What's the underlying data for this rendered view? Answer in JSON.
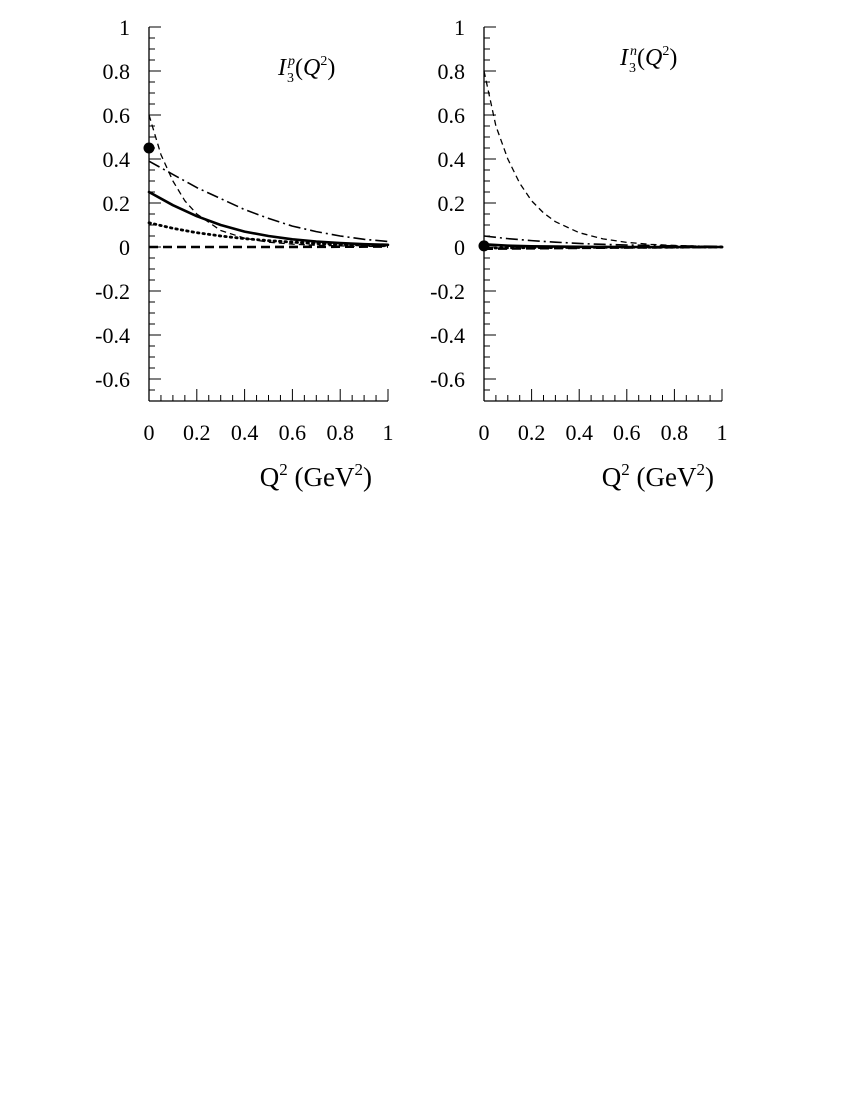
{
  "chart_data": [
    {
      "type": "line",
      "title_parts": {
        "base": "I",
        "sub": "3",
        "sup": "p",
        "open": "(",
        "var": "Q",
        "var_sup": "2",
        "close": ")"
      },
      "xlabel_parts": {
        "base": "Q",
        "sup": "2",
        "mid": " (GeV",
        "unit_sup": "2",
        "close": ")"
      },
      "xlim": [
        0,
        1
      ],
      "ylim": [
        -0.7,
        1
      ],
      "xticks": [
        0,
        0.2,
        0.4,
        0.6,
        0.8,
        1
      ],
      "xtick_labels": [
        "0",
        "0.2",
        "0.4",
        "0.6",
        "0.8",
        "1"
      ],
      "yticks": [
        1,
        0.8,
        0.6,
        0.4,
        0.2,
        0,
        -0.2,
        -0.4,
        -0.6
      ],
      "ytick_labels": [
        "1",
        "0.8",
        "0.6",
        "0.4",
        "0.2",
        "0",
        "-0.2",
        "-0.4",
        "-0.6"
      ],
      "grid": false,
      "series": [
        {
          "style": "thin-dashed",
          "x": [
            0,
            0.05,
            0.1,
            0.15,
            0.2,
            0.3,
            0.4,
            0.5,
            0.6,
            0.7,
            0.8,
            0.9,
            1.0
          ],
          "y": [
            0.6,
            0.42,
            0.3,
            0.21,
            0.15,
            0.075,
            0.04,
            0.022,
            0.013,
            0.008,
            0.005,
            0.003,
            0.002
          ]
        },
        {
          "style": "dash-dot",
          "x": [
            0,
            0.1,
            0.2,
            0.3,
            0.4,
            0.5,
            0.6,
            0.7,
            0.8,
            0.9,
            1.0
          ],
          "y": [
            0.39,
            0.33,
            0.27,
            0.22,
            0.17,
            0.13,
            0.095,
            0.07,
            0.05,
            0.035,
            0.025
          ]
        },
        {
          "style": "solid-thick",
          "x": [
            0,
            0.1,
            0.2,
            0.3,
            0.4,
            0.5,
            0.6,
            0.7,
            0.8,
            0.9,
            1.0
          ],
          "y": [
            0.25,
            0.19,
            0.14,
            0.1,
            0.07,
            0.05,
            0.035,
            0.025,
            0.018,
            0.013,
            0.01
          ]
        },
        {
          "style": "dotted-thick",
          "x": [
            0,
            0.1,
            0.2,
            0.3,
            0.4,
            0.5,
            0.6,
            0.7,
            0.8,
            0.9,
            1.0
          ],
          "y": [
            0.11,
            0.085,
            0.065,
            0.05,
            0.038,
            0.029,
            0.022,
            0.016,
            0.012,
            0.009,
            0.007
          ]
        },
        {
          "style": "dashed-thick",
          "x": [
            0,
            0.5,
            1.0
          ],
          "y": [
            0,
            0,
            0.002
          ]
        }
      ],
      "points": [
        {
          "x": 0,
          "y": 0.45
        }
      ]
    },
    {
      "type": "line",
      "title_parts": {
        "base": "I",
        "sub": "3",
        "sup": "n",
        "open": "(",
        "var": "Q",
        "var_sup": "2",
        "close": ")"
      },
      "xlabel_parts": {
        "base": "Q",
        "sup": "2",
        "mid": " (GeV",
        "unit_sup": "2",
        "close": ")"
      },
      "xlim": [
        0,
        1
      ],
      "ylim": [
        -0.7,
        1
      ],
      "xticks": [
        0,
        0.2,
        0.4,
        0.6,
        0.8,
        1
      ],
      "xtick_labels": [
        "0",
        "0.2",
        "0.4",
        "0.6",
        "0.8",
        "1"
      ],
      "yticks": [
        1,
        0.8,
        0.6,
        0.4,
        0.2,
        0,
        -0.2,
        -0.4,
        -0.6
      ],
      "ytick_labels": [
        "1",
        "0.8",
        "0.6",
        "0.4",
        "0.2",
        "0",
        "-0.2",
        "-0.4",
        "-0.6"
      ],
      "grid": false,
      "series": [
        {
          "style": "thin-dashed",
          "x": [
            0,
            0.05,
            0.1,
            0.15,
            0.2,
            0.25,
            0.3,
            0.4,
            0.5,
            0.6,
            0.7,
            0.8,
            0.9,
            1.0
          ],
          "y": [
            0.8,
            0.55,
            0.4,
            0.29,
            0.21,
            0.155,
            0.115,
            0.065,
            0.037,
            0.021,
            0.012,
            0.007,
            0.004,
            0.002
          ]
        },
        {
          "style": "dash-dot",
          "x": [
            0,
            0.1,
            0.2,
            0.3,
            0.4,
            0.5,
            0.6,
            0.7,
            0.8,
            0.9,
            1.0
          ],
          "y": [
            0.05,
            0.038,
            0.029,
            0.022,
            0.016,
            0.012,
            0.009,
            0.007,
            0.005,
            0.004,
            0.003
          ]
        },
        {
          "style": "solid-thick",
          "x": [
            0,
            0.1,
            0.2,
            0.4,
            0.6,
            0.8,
            1.0
          ],
          "y": [
            0.012,
            0.006,
            0.003,
            0.001,
            0.0,
            0.0,
            0.0
          ]
        },
        {
          "style": "dotted-thick",
          "x": [
            0,
            0.1,
            0.2,
            0.4,
            0.6,
            0.8,
            1.0
          ],
          "y": [
            -0.005,
            -0.004,
            -0.003,
            -0.002,
            -0.001,
            -0.001,
            0.0
          ]
        },
        {
          "style": "dashed-thick",
          "x": [
            0,
            0.5,
            1.0
          ],
          "y": [
            -0.008,
            -0.003,
            0.0
          ]
        }
      ],
      "points": [
        {
          "x": 0,
          "y": 0.005
        }
      ]
    }
  ]
}
